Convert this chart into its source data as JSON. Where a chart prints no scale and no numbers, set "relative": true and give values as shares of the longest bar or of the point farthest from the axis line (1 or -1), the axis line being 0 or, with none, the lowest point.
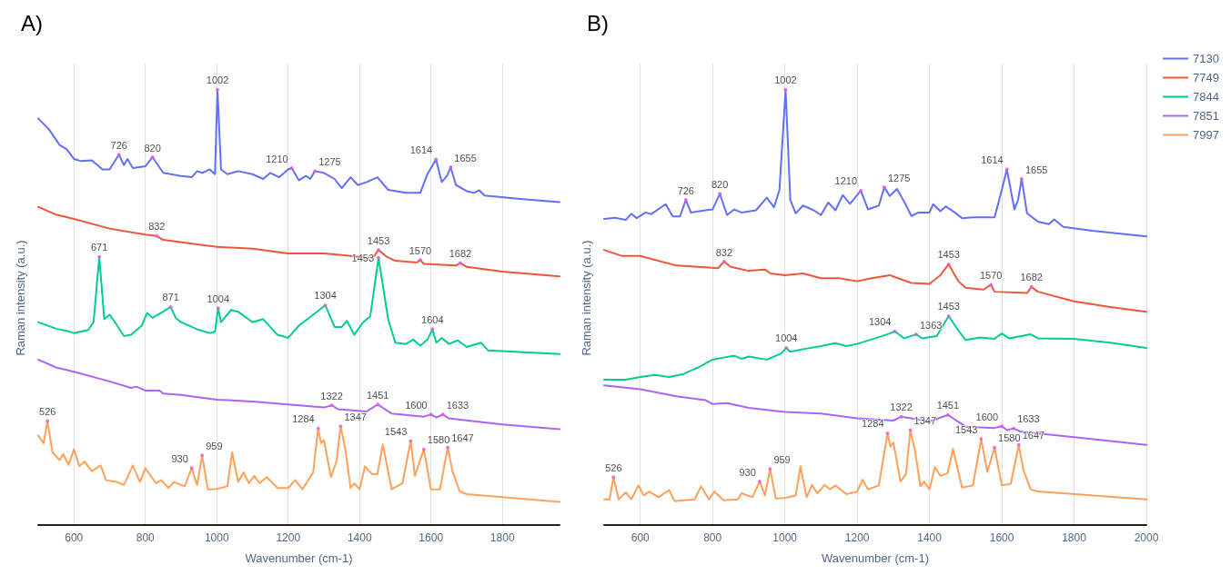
{
  "chart_data": [
    {
      "type": "line",
      "title": "A)",
      "xlabel": "Wavenumber (cm-1)",
      "ylabel": "Raman intensity (a.u.)",
      "relative": true,
      "xlim": [
        500,
        1960
      ],
      "xticks": [
        600,
        800,
        1000,
        1200,
        1400,
        1600,
        1800
      ],
      "grid": "x",
      "tick_labels": "x",
      "legend": false,
      "series": [
        {
          "color": "#636efa",
          "x": [
            500,
            530,
            560,
            580,
            600,
            620,
            650,
            680,
            700,
            726,
            740,
            750,
            765,
            800,
            820,
            850,
            900,
            930,
            945,
            960,
            980,
            995,
            1002,
            1012,
            1030,
            1060,
            1100,
            1130,
            1150,
            1175,
            1200,
            1210,
            1230,
            1250,
            1262,
            1275,
            1300,
            1330,
            1350,
            1375,
            1395,
            1420,
            1450,
            1480,
            1530,
            1570,
            1590,
            1614,
            1630,
            1645,
            1655,
            1670,
            1700,
            1720,
            1735,
            1750,
            1850,
            1960
          ],
          "values": [
            0.934,
            0.909,
            0.873,
            0.863,
            0.841,
            0.836,
            0.838,
            0.817,
            0.817,
            0.851,
            0.827,
            0.841,
            0.82,
            0.824,
            0.845,
            0.809,
            0.802,
            0.799,
            0.813,
            0.809,
            0.817,
            0.806,
            1,
            0.817,
            0.806,
            0.813,
            0.806,
            0.795,
            0.809,
            0.799,
            0.817,
            0.82,
            0.792,
            0.802,
            0.795,
            0.813,
            0.809,
            0.795,
            0.774,
            0.799,
            0.781,
            0.788,
            0.799,
            0.77,
            0.763,
            0.763,
            0.806,
            0.84,
            0.788,
            0.802,
            0.822,
            0.781,
            0.767,
            0.763,
            0.769,
            0.757,
            0.749,
            0.742
          ]
        },
        {
          "color": "#ef553b",
          "x": [
            500,
            550,
            600,
            700,
            800,
            832,
            850,
            950,
            1000,
            1100,
            1200,
            1300,
            1350,
            1420,
            1440,
            1453,
            1475,
            1500,
            1560,
            1570,
            1580,
            1670,
            1682,
            1700,
            1800,
            1960
          ],
          "values": [
            0.731,
            0.713,
            0.703,
            0.681,
            0.667,
            0.664,
            0.655,
            0.644,
            0.639,
            0.635,
            0.624,
            0.624,
            0.62,
            0.614,
            0.617,
            0.632,
            0.617,
            0.607,
            0.603,
            0.609,
            0.6,
            0.596,
            0.602,
            0.593,
            0.582,
            0.571
          ]
        },
        {
          "color": "#00cc96",
          "x": [
            500,
            550,
            580,
            600,
            640,
            655,
            671,
            685,
            700,
            715,
            740,
            760,
            790,
            805,
            820,
            850,
            871,
            885,
            900,
            950,
            980,
            995,
            1004,
            1012,
            1040,
            1060,
            1100,
            1130,
            1170,
            1200,
            1230,
            1270,
            1304,
            1330,
            1350,
            1365,
            1385,
            1410,
            1430,
            1453,
            1480,
            1500,
            1530,
            1550,
            1570,
            1590,
            1604,
            1615,
            1630,
            1650,
            1675,
            1700,
            1740,
            1760,
            1960
          ],
          "values": [
            0.466,
            0.451,
            0.446,
            0.441,
            0.448,
            0.466,
            0.616,
            0.473,
            0.483,
            0.466,
            0.434,
            0.437,
            0.458,
            0.487,
            0.476,
            0.49,
            0.501,
            0.476,
            0.466,
            0.448,
            0.441,
            0.444,
            0.498,
            0.466,
            0.494,
            0.49,
            0.466,
            0.473,
            0.437,
            0.43,
            0.458,
            0.483,
            0.505,
            0.455,
            0.455,
            0.469,
            0.437,
            0.466,
            0.48,
            0.614,
            0.473,
            0.419,
            0.416,
            0.426,
            0.412,
            0.426,
            0.45,
            0.419,
            0.43,
            0.416,
            0.424,
            0.409,
            0.419,
            0.401,
            0.393
          ]
        },
        {
          "color": "#ab63fa",
          "x": [
            500,
            550,
            600,
            700,
            760,
            775,
            800,
            840,
            850,
            900,
            1000,
            1100,
            1200,
            1300,
            1322,
            1340,
            1420,
            1451,
            1490,
            1580,
            1600,
            1615,
            1633,
            1650,
            1800,
            1960
          ],
          "values": [
            0.38,
            0.362,
            0.352,
            0.33,
            0.315,
            0.318,
            0.309,
            0.309,
            0.302,
            0.299,
            0.288,
            0.284,
            0.277,
            0.27,
            0.275,
            0.266,
            0.261,
            0.277,
            0.256,
            0.249,
            0.254,
            0.247,
            0.254,
            0.245,
            0.231,
            0.22
          ]
        },
        {
          "color": "#ffa15a",
          "x": [
            500,
            515,
            526,
            540,
            560,
            570,
            585,
            600,
            615,
            630,
            650,
            675,
            690,
            720,
            740,
            765,
            785,
            800,
            830,
            845,
            865,
            880,
            910,
            930,
            945,
            959,
            975,
            1000,
            1030,
            1043,
            1060,
            1075,
            1090,
            1105,
            1120,
            1140,
            1170,
            1200,
            1220,
            1240,
            1270,
            1284,
            1292,
            1300,
            1320,
            1335,
            1347,
            1360,
            1375,
            1385,
            1400,
            1415,
            1435,
            1450,
            1465,
            1490,
            1520,
            1543,
            1555,
            1580,
            1600,
            1625,
            1647,
            1660,
            1680,
            1700,
            1960
          ],
          "values": [
            0.206,
            0.188,
            0.239,
            0.167,
            0.149,
            0.163,
            0.138,
            0.174,
            0.135,
            0.146,
            0.124,
            0.137,
            0.103,
            0.099,
            0.092,
            0.137,
            0.099,
            0.131,
            0.096,
            0.103,
            0.085,
            0.099,
            0.089,
            0.131,
            0.092,
            0.16,
            0.082,
            0.083,
            0.089,
            0.167,
            0.099,
            0.121,
            0.096,
            0.113,
            0.096,
            0.11,
            0.085,
            0.085,
            0.103,
            0.082,
            0.121,
            0.222,
            0.188,
            0.195,
            0.11,
            0.146,
            0.227,
            0.174,
            0.085,
            0.096,
            0.082,
            0.135,
            0.117,
            0.117,
            0.185,
            0.082,
            0.096,
            0.193,
            0.113,
            0.174,
            0.082,
            0.082,
            0.178,
            0.124,
            0.078,
            0.071,
            0.053
          ]
        }
      ],
      "annotations": [
        {
          "text": "726",
          "x": 726,
          "y": 0.851
        },
        {
          "text": "820",
          "x": 820,
          "y": 0.845
        },
        {
          "text": "1002",
          "x": 1002,
          "y": 1
        },
        {
          "text": "1210",
          "x": 1210,
          "y": 0.82
        },
        {
          "text": "1275",
          "x": 1275,
          "y": 0.813
        },
        {
          "text": "1614",
          "x": 1614,
          "y": 0.84
        },
        {
          "text": "1655",
          "x": 1655,
          "y": 0.822
        },
        {
          "text": "832",
          "x": 832,
          "y": 0.664
        },
        {
          "text": "1453",
          "x": 1453,
          "y": 0.632
        },
        {
          "text": "1570",
          "x": 1570,
          "y": 0.609
        },
        {
          "text": "1682",
          "x": 1682,
          "y": 0.602
        },
        {
          "text": "671",
          "x": 671,
          "y": 0.616
        },
        {
          "text": "871",
          "x": 871,
          "y": 0.501
        },
        {
          "text": "1004",
          "x": 1004,
          "y": 0.498
        },
        {
          "text": "1304",
          "x": 1304,
          "y": 0.505
        },
        {
          "text": "1453",
          "x": 1453,
          "y": 0.614
        },
        {
          "text": "1604",
          "x": 1604,
          "y": 0.45
        },
        {
          "text": "1322",
          "x": 1322,
          "y": 0.275
        },
        {
          "text": "1451",
          "x": 1451,
          "y": 0.277
        },
        {
          "text": "1600",
          "x": 1600,
          "y": 0.254
        },
        {
          "text": "1633",
          "x": 1633,
          "y": 0.254
        },
        {
          "text": "526",
          "x": 526,
          "y": 0.239
        },
        {
          "text": "930",
          "x": 930,
          "y": 0.131
        },
        {
          "text": "959",
          "x": 959,
          "y": 0.16
        },
        {
          "text": "1284",
          "x": 1284,
          "y": 0.222
        },
        {
          "text": "1347",
          "x": 1347,
          "y": 0.227
        },
        {
          "text": "1543",
          "x": 1543,
          "y": 0.193
        },
        {
          "text": "1580",
          "x": 1580,
          "y": 0.174
        },
        {
          "text": "1647",
          "x": 1647,
          "y": 0.178
        }
      ]
    },
    {
      "type": "line",
      "title": "B)",
      "xlabel": "Wavenumber (cm-1)",
      "ylabel": "Raman intensity (a.u.)",
      "relative": true,
      "xlim": [
        500,
        2000
      ],
      "xticks": [
        600,
        800,
        1000,
        1200,
        1400,
        1600,
        1800,
        2000
      ],
      "grid": "x",
      "tick_labels": "x",
      "legend": "top right",
      "series": [
        {
          "name": "7130",
          "color": "#636efa",
          "x": [
            500,
            530,
            560,
            575,
            590,
            615,
            630,
            670,
            690,
            710,
            726,
            740,
            780,
            800,
            820,
            840,
            860,
            880,
            920,
            950,
            970,
            985,
            1002,
            1015,
            1030,
            1050,
            1080,
            1100,
            1120,
            1140,
            1160,
            1180,
            1210,
            1230,
            1260,
            1275,
            1290,
            1310,
            1330,
            1350,
            1370,
            1400,
            1410,
            1430,
            1445,
            1470,
            1490,
            1520,
            1580,
            1600,
            1614,
            1635,
            1645,
            1655,
            1670,
            1700,
            1730,
            1745,
            1770,
            1850,
            2000
          ],
          "values": [
            0.703,
            0.706,
            0.701,
            0.715,
            0.705,
            0.718,
            0.714,
            0.737,
            0.709,
            0.709,
            0.747,
            0.718,
            0.723,
            0.725,
            0.761,
            0.712,
            0.725,
            0.718,
            0.723,
            0.752,
            0.73,
            0.77,
            1,
            0.747,
            0.716,
            0.734,
            0.723,
            0.712,
            0.741,
            0.723,
            0.758,
            0.738,
            0.768,
            0.725,
            0.734,
            0.776,
            0.756,
            0.772,
            0.743,
            0.71,
            0.718,
            0.718,
            0.737,
            0.721,
            0.732,
            0.718,
            0.705,
            0.707,
            0.707,
            0.77,
            0.817,
            0.725,
            0.747,
            0.795,
            0.716,
            0.697,
            0.691,
            0.702,
            0.685,
            0.676,
            0.663
          ]
        },
        {
          "name": "7749",
          "color": "#ef553b",
          "x": [
            500,
            550,
            600,
            700,
            780,
            815,
            832,
            850,
            900,
            945,
            960,
            1000,
            1050,
            1100,
            1150,
            1200,
            1240,
            1290,
            1320,
            1350,
            1400,
            1430,
            1453,
            1480,
            1500,
            1550,
            1570,
            1580,
            1670,
            1682,
            1700,
            1800,
            1900,
            2000
          ],
          "values": [
            0.632,
            0.618,
            0.618,
            0.596,
            0.592,
            0.59,
            0.605,
            0.593,
            0.584,
            0.587,
            0.578,
            0.574,
            0.578,
            0.567,
            0.567,
            0.56,
            0.567,
            0.574,
            0.565,
            0.556,
            0.554,
            0.574,
            0.599,
            0.56,
            0.545,
            0.541,
            0.552,
            0.536,
            0.533,
            0.547,
            0.536,
            0.514,
            0.501,
            0.49
          ]
        },
        {
          "name": "7844",
          "color": "#00cc96",
          "x": [
            500,
            560,
            600,
            640,
            680,
            720,
            760,
            800,
            860,
            880,
            900,
            950,
            990,
            1004,
            1015,
            1050,
            1100,
            1140,
            1170,
            1200,
            1250,
            1290,
            1304,
            1330,
            1363,
            1380,
            1420,
            1453,
            1480,
            1500,
            1540,
            1580,
            1600,
            1620,
            1680,
            1700,
            1800,
            1900,
            2000
          ],
          "values": [
            0.334,
            0.334,
            0.34,
            0.345,
            0.34,
            0.347,
            0.362,
            0.38,
            0.389,
            0.382,
            0.387,
            0.38,
            0.394,
            0.407,
            0.398,
            0.404,
            0.411,
            0.418,
            0.411,
            0.416,
            0.429,
            0.44,
            0.445,
            0.429,
            0.438,
            0.429,
            0.434,
            0.48,
            0.447,
            0.425,
            0.431,
            0.428,
            0.44,
            0.429,
            0.438,
            0.429,
            0.428,
            0.419,
            0.407
          ]
        },
        {
          "name": "7851",
          "color": "#ab63fa",
          "x": [
            500,
            600,
            700,
            780,
            800,
            840,
            900,
            1000,
            1100,
            1200,
            1300,
            1322,
            1400,
            1451,
            1500,
            1580,
            1600,
            1615,
            1633,
            1650,
            1800,
            2000
          ],
          "values": [
            0.321,
            0.312,
            0.296,
            0.287,
            0.278,
            0.28,
            0.269,
            0.26,
            0.256,
            0.245,
            0.24,
            0.249,
            0.238,
            0.253,
            0.226,
            0.223,
            0.227,
            0.218,
            0.222,
            0.215,
            0.202,
            0.184
          ]
        },
        {
          "name": "7997",
          "color": "#ffa15a",
          "x": [
            500,
            515,
            526,
            540,
            560,
            575,
            595,
            610,
            625,
            650,
            680,
            695,
            720,
            750,
            768,
            790,
            805,
            830,
            870,
            880,
            910,
            930,
            945,
            959,
            975,
            1000,
            1030,
            1043,
            1060,
            1075,
            1090,
            1110,
            1125,
            1140,
            1170,
            1200,
            1215,
            1230,
            1260,
            1284,
            1292,
            1300,
            1320,
            1335,
            1347,
            1360,
            1375,
            1385,
            1400,
            1415,
            1430,
            1450,
            1465,
            1490,
            1520,
            1543,
            1560,
            1580,
            1600,
            1625,
            1647,
            1660,
            1680,
            1700,
            2000
          ],
          "values": [
            0.059,
            0.059,
            0.11,
            0.059,
            0.075,
            0.059,
            0.091,
            0.068,
            0.077,
            0.064,
            0.08,
            0.055,
            0.057,
            0.059,
            0.089,
            0.059,
            0.077,
            0.057,
            0.059,
            0.073,
            0.064,
            0.1,
            0.068,
            0.129,
            0.061,
            0.062,
            0.068,
            0.135,
            0.064,
            0.092,
            0.073,
            0.092,
            0.082,
            0.091,
            0.071,
            0.077,
            0.104,
            0.082,
            0.091,
            0.211,
            0.18,
            0.19,
            0.1,
            0.117,
            0.218,
            0.171,
            0.089,
            0.1,
            0.082,
            0.133,
            0.113,
            0.119,
            0.175,
            0.086,
            0.091,
            0.198,
            0.122,
            0.178,
            0.091,
            0.095,
            0.184,
            0.126,
            0.082,
            0.077,
            0.059
          ]
        }
      ],
      "annotations": [
        {
          "text": "726",
          "x": 726,
          "y": 0.747
        },
        {
          "text": "820",
          "x": 820,
          "y": 0.761
        },
        {
          "text": "1002",
          "x": 1002,
          "y": 1
        },
        {
          "text": "1210",
          "x": 1210,
          "y": 0.768
        },
        {
          "text": "1275",
          "x": 1275,
          "y": 0.776
        },
        {
          "text": "1614",
          "x": 1614,
          "y": 0.817
        },
        {
          "text": "1655",
          "x": 1655,
          "y": 0.795
        },
        {
          "text": "832",
          "x": 832,
          "y": 0.605
        },
        {
          "text": "1453",
          "x": 1453,
          "y": 0.599
        },
        {
          "text": "1570",
          "x": 1570,
          "y": 0.552
        },
        {
          "text": "1682",
          "x": 1682,
          "y": 0.547
        },
        {
          "text": "1004",
          "x": 1004,
          "y": 0.407
        },
        {
          "text": "1304",
          "x": 1304,
          "y": 0.445
        },
        {
          "text": "1363",
          "x": 1363,
          "y": 0.438
        },
        {
          "text": "1453",
          "x": 1453,
          "y": 0.48
        },
        {
          "text": "1322",
          "x": 1322,
          "y": 0.249
        },
        {
          "text": "1451",
          "x": 1451,
          "y": 0.253
        },
        {
          "text": "1600",
          "x": 1600,
          "y": 0.227
        },
        {
          "text": "1633",
          "x": 1633,
          "y": 0.222
        },
        {
          "text": "526",
          "x": 526,
          "y": 0.11
        },
        {
          "text": "930",
          "x": 930,
          "y": 0.1
        },
        {
          "text": "959",
          "x": 959,
          "y": 0.129
        },
        {
          "text": "1284",
          "x": 1284,
          "y": 0.211
        },
        {
          "text": "1347",
          "x": 1347,
          "y": 0.218
        },
        {
          "text": "1543",
          "x": 1543,
          "y": 0.198
        },
        {
          "text": "1580",
          "x": 1580,
          "y": 0.178
        },
        {
          "text": "1647",
          "x": 1647,
          "y": 0.184
        }
      ]
    }
  ]
}
